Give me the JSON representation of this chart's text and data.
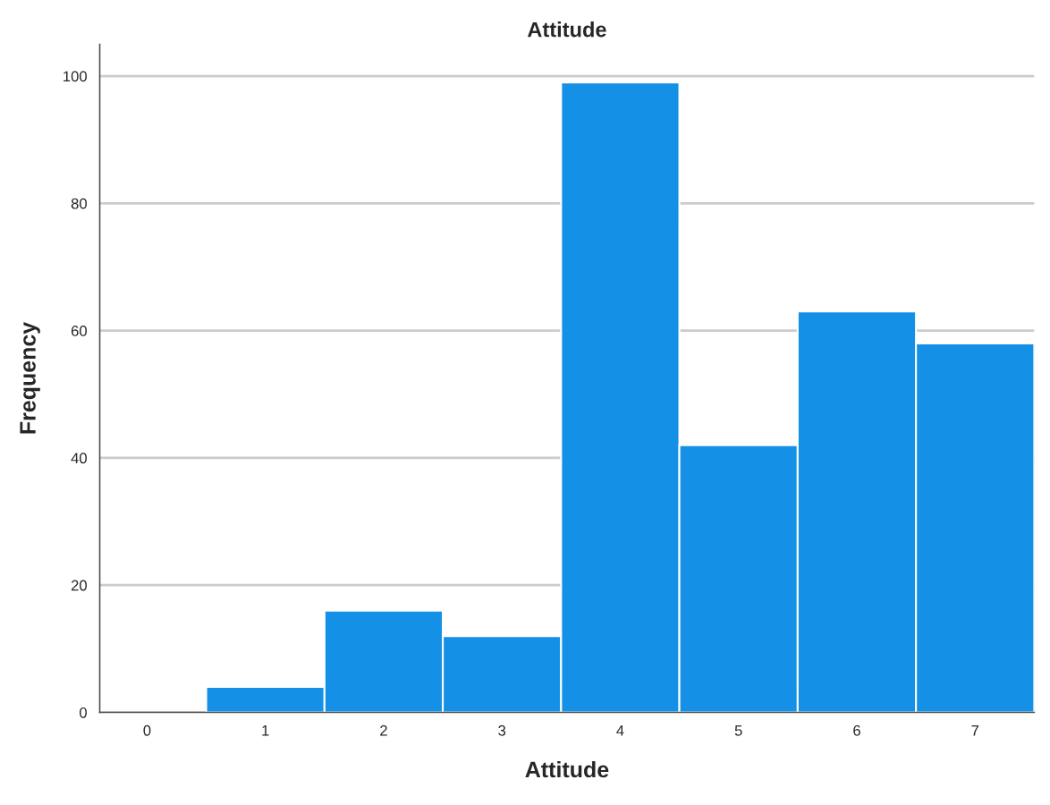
{
  "chart_data": {
    "type": "histogram",
    "title": "Attitude",
    "xlabel": "Attitude",
    "ylabel": "Frequency",
    "bins": [
      0.5,
      1.5,
      2.5,
      3.5,
      4.5,
      5.5,
      6.5,
      7.5
    ],
    "values": [
      4,
      16,
      12,
      99,
      42,
      63,
      58
    ],
    "color": "#1490e6",
    "xlim": [
      -0.4,
      7.5
    ],
    "xticks": [
      0,
      1,
      2,
      3,
      4,
      5,
      6,
      7
    ],
    "ylim": [
      0,
      105
    ],
    "yticks": [
      0,
      20,
      40,
      60,
      80,
      100
    ],
    "grid": "y",
    "legend": false
  }
}
